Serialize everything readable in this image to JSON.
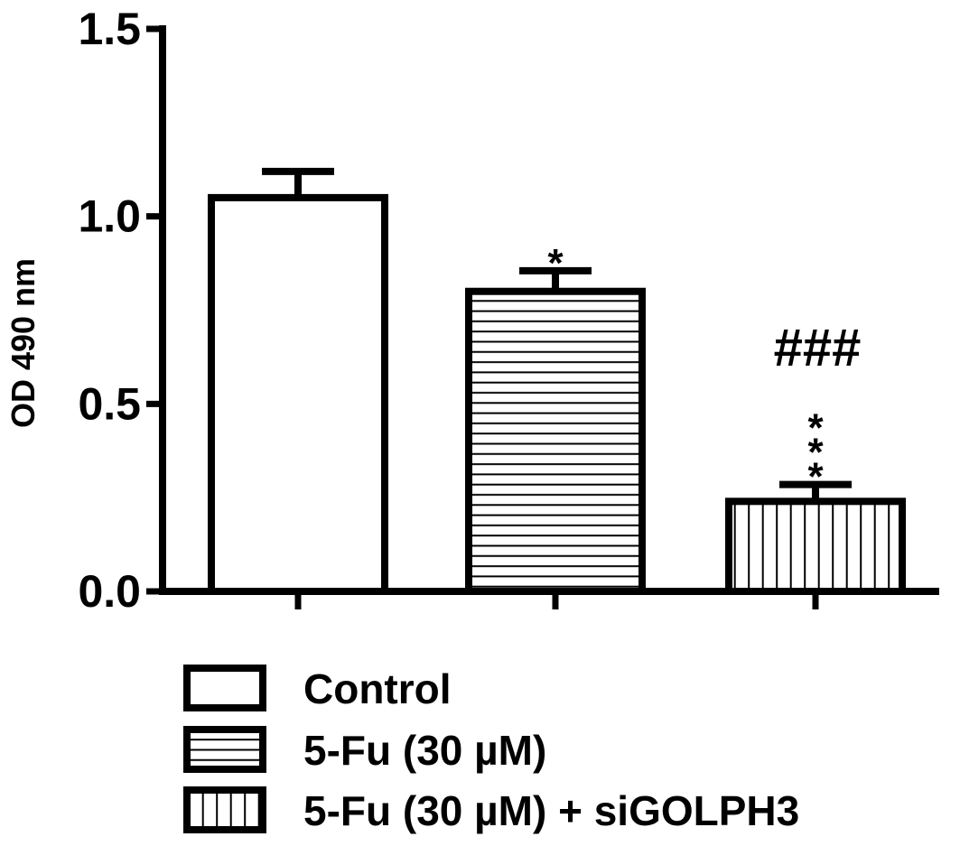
{
  "chart_data": {
    "type": "bar",
    "ylabel": "OD 490 nm",
    "ylim": [
      0,
      1.5
    ],
    "yticks": [
      0.0,
      0.5,
      1.0,
      1.5
    ],
    "ytick_labels": [
      "0.0",
      "0.5",
      "1.0",
      "1.5"
    ],
    "categories": [
      "Control",
      "5-Fu (30 µM)",
      "5-Fu (30 µM) + siGOLPH3"
    ],
    "values": [
      1.05,
      0.8,
      0.24
    ],
    "errors": [
      0.07,
      0.055,
      0.045
    ],
    "patterns": [
      "none",
      "horizontal",
      "vertical"
    ],
    "significance": [
      "",
      "*",
      "***"
    ],
    "significance_secondary": [
      "",
      "",
      "###"
    ],
    "legend": {
      "position": "bottom",
      "entries": [
        "Control",
        "5-Fu (30 µM)",
        "5-Fu (30 µM) + siGOLPH3"
      ]
    },
    "grid": false
  }
}
